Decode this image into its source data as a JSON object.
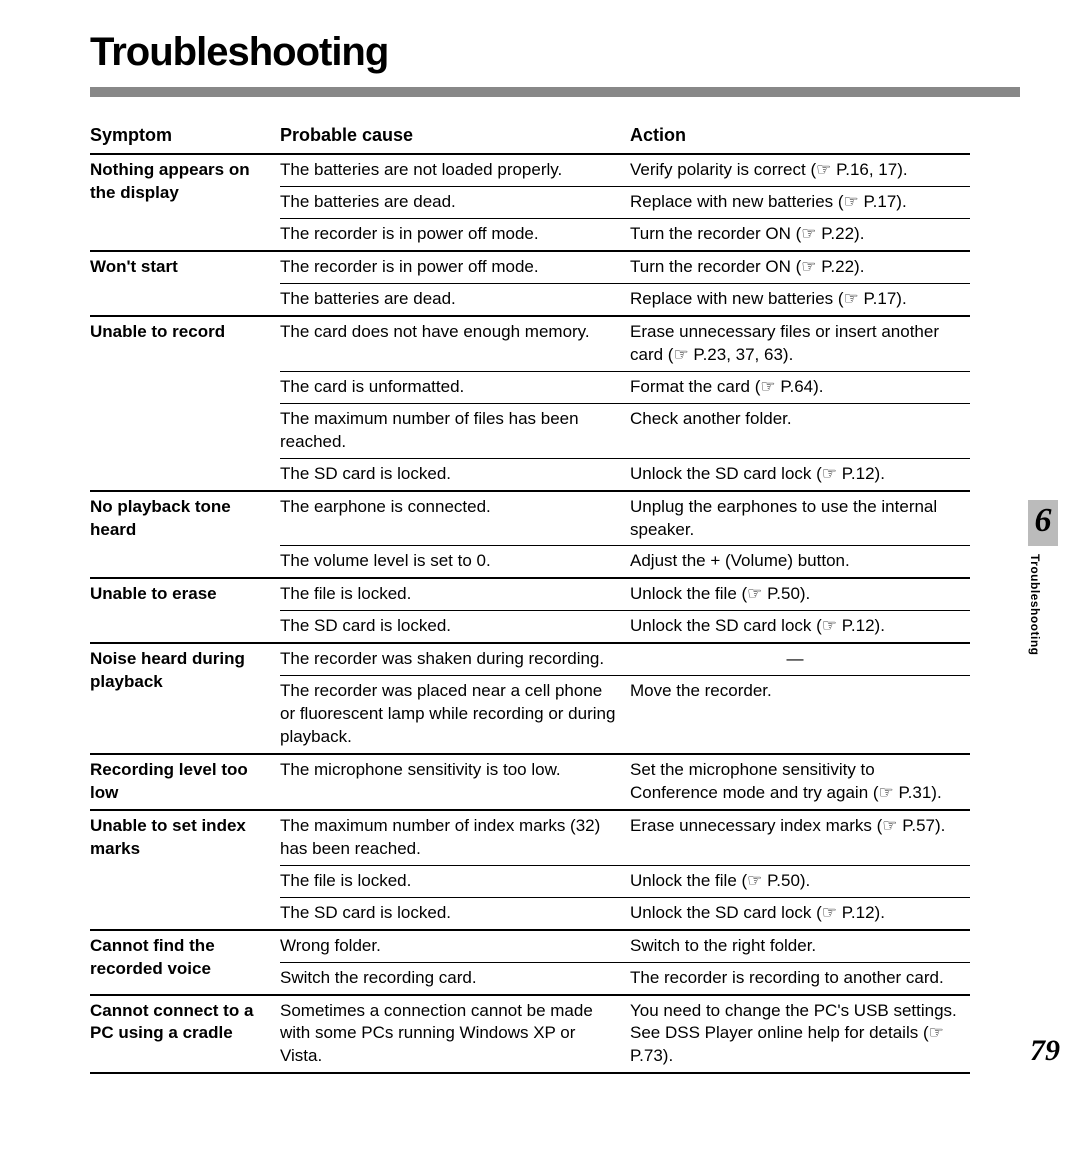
{
  "title": "Troubleshooting",
  "chapter_number": "6",
  "side_label": "Troubleshooting",
  "page_number": "79",
  "headers": {
    "symptom": "Symptom",
    "cause": "Probable cause",
    "action": "Action"
  },
  "colors": {
    "rule_bar": "#888888",
    "chapter_bg": "#bbbbbb",
    "text": "#000000",
    "bg": "#ffffff"
  },
  "font_sizes": {
    "title": 40,
    "header": 18,
    "body": 17,
    "chapter": 34,
    "pagenum": 30,
    "side": 12
  },
  "groups": [
    {
      "symptom": "Nothing appears on the display",
      "rows": [
        {
          "cause": "The batteries are not loaded properly.",
          "action": "Verify polarity is correct (☞ P.16, 17)."
        },
        {
          "cause": "The batteries are dead.",
          "action": "Replace with new batteries (☞ P.17)."
        },
        {
          "cause": "The recorder is in power off mode.",
          "action": "Turn the recorder ON (☞ P.22)."
        }
      ]
    },
    {
      "symptom": "Won't start",
      "rows": [
        {
          "cause": "The recorder is in power off mode.",
          "action": "Turn the recorder ON (☞ P.22)."
        },
        {
          "cause": "The batteries are dead.",
          "action": "Replace with new batteries (☞ P.17)."
        }
      ]
    },
    {
      "symptom": "Unable to record",
      "rows": [
        {
          "cause": "The card does not have enough memory.",
          "action": "Erase unnecessary files or insert another card (☞ P.23, 37, 63)."
        },
        {
          "cause": "The card is unformatted.",
          "action": "Format the card (☞ P.64)."
        },
        {
          "cause": "The maximum number of files has been reached.",
          "action": "Check another folder."
        },
        {
          "cause": "The SD card is locked.",
          "action": "Unlock the SD card lock (☞ P.12)."
        }
      ]
    },
    {
      "symptom": "No playback tone heard",
      "rows": [
        {
          "cause": "The earphone is connected.",
          "action": "Unplug the earphones to use the internal speaker."
        },
        {
          "cause": "The volume level is set to 0.",
          "action": "Adjust the + (Volume) button."
        }
      ]
    },
    {
      "symptom": "Unable to erase",
      "rows": [
        {
          "cause": "The file is locked.",
          "action": "Unlock the file (☞ P.50)."
        },
        {
          "cause": "The SD card is locked.",
          "action": "Unlock the SD card lock (☞ P.12)."
        }
      ]
    },
    {
      "symptom": "Noise heard during playback",
      "rows": [
        {
          "cause": "The recorder was shaken during recording.",
          "action": "—",
          "dash": true
        },
        {
          "cause": "The recorder was placed near a cell phone or fluorescent lamp while recording or during playback.",
          "action": "Move the recorder."
        }
      ]
    },
    {
      "symptom": "Recording level too low",
      "rows": [
        {
          "cause": "The microphone sensitivity is too low.",
          "action": "Set the microphone sensitivity to Conference mode and try again (☞ P.31)."
        }
      ]
    },
    {
      "symptom": "Unable to set index marks",
      "rows": [
        {
          "cause": "The maximum number of index marks (32) has been reached.",
          "action": "Erase unnecessary index marks (☞ P.57)."
        },
        {
          "cause": "The file is locked.",
          "action": "Unlock the file (☞ P.50)."
        },
        {
          "cause": "The SD card is locked.",
          "action": "Unlock the SD card lock (☞ P.12)."
        }
      ]
    },
    {
      "symptom": "Cannot find the recorded voice",
      "rows": [
        {
          "cause": "Wrong folder.",
          "action": "Switch to the right folder."
        },
        {
          "cause": "Switch the recording card.",
          "action": "The recorder is recording to another card."
        }
      ]
    },
    {
      "symptom": "Cannot connect to a PC using a cradle",
      "rows": [
        {
          "cause": "Sometimes a connection cannot be made with some PCs running Windows XP or Vista.",
          "action": "You need to change the PC's USB settings. See DSS Player online help for details (☞ P.73)."
        }
      ]
    }
  ]
}
